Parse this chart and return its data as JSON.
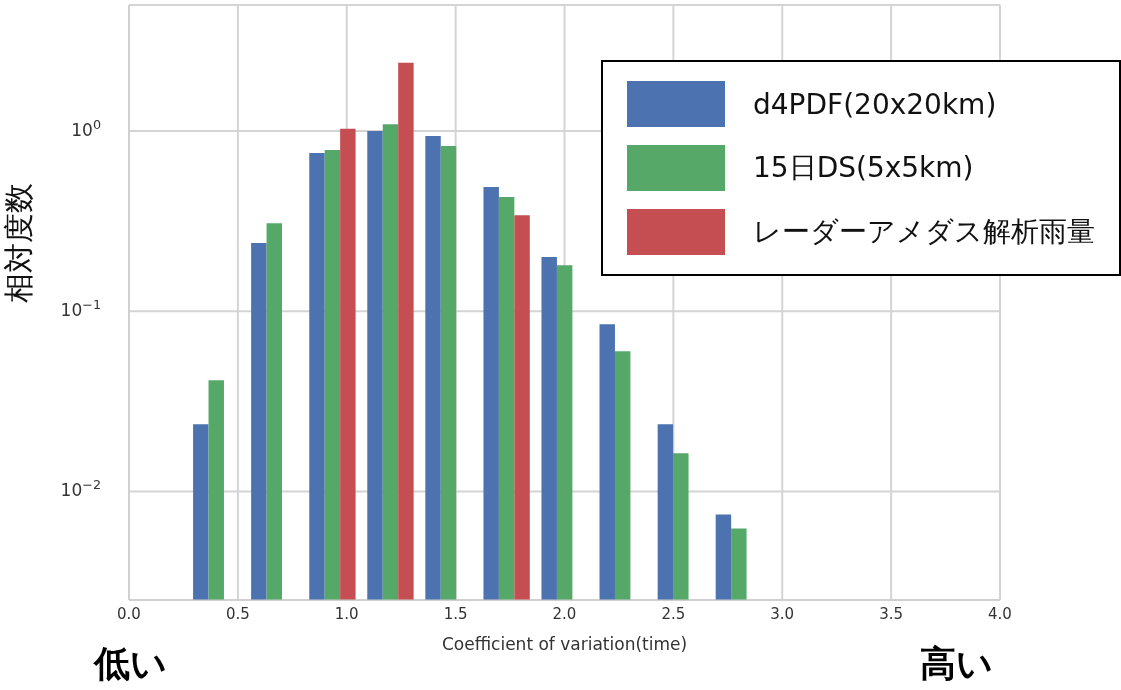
{
  "chart_data": {
    "type": "histogram",
    "xlabel": "Coefficient of variation(time)",
    "ylabel": "相対度数",
    "bins": [
      0.267,
      0.533,
      0.8,
      1.067,
      1.333,
      1.6,
      1.867,
      2.133,
      2.4,
      2.667,
      2.933
    ],
    "series": [
      {
        "name": "d4PDF(20x20km)",
        "color": "#4c72b0",
        "values": [
          0.0236,
          0.239,
          0.755,
          1.0,
          0.938,
          0.489,
          0.2,
          0.0847,
          0.0236,
          0.00745
        ]
      },
      {
        "name": "15日DS(5x5km)",
        "color": "#55a868",
        "values": [
          0.0414,
          0.308,
          0.784,
          1.09,
          0.826,
          0.43,
          0.18,
          0.06,
          0.0163,
          0.00623
        ]
      },
      {
        "name": "レーダーアメダス解析雨量",
        "color": "#c44e52",
        "values": [
          null,
          null,
          1.03,
          2.39,
          null,
          0.341,
          null,
          null,
          null,
          null
        ]
      }
    ],
    "log": true,
    "xlim": [
      0,
      4
    ],
    "xticks": [
      {
        "value": 0,
        "label": "0.0"
      },
      {
        "value": 0.5,
        "label": "0.5"
      },
      {
        "value": 1,
        "label": "1.0"
      },
      {
        "value": 1.5,
        "label": "1.5"
      },
      {
        "value": 2,
        "label": "2.0"
      },
      {
        "value": 2.5,
        "label": "2.5"
      },
      {
        "value": 3,
        "label": "3.0"
      },
      {
        "value": 3.5,
        "label": "3.5"
      },
      {
        "value": 4,
        "label": "4.0"
      }
    ],
    "ylim": [
      0.0025,
      5
    ],
    "yticks": [
      {
        "value": 0.01,
        "label": "10$^{−2}$"
      },
      {
        "value": 0.1,
        "label": "10$^{−1}$"
      },
      {
        "value": 1,
        "label": "10$^{0}$"
      }
    ],
    "grid": true,
    "legend": "top right",
    "annotations": [
      "低い",
      "高い"
    ]
  }
}
